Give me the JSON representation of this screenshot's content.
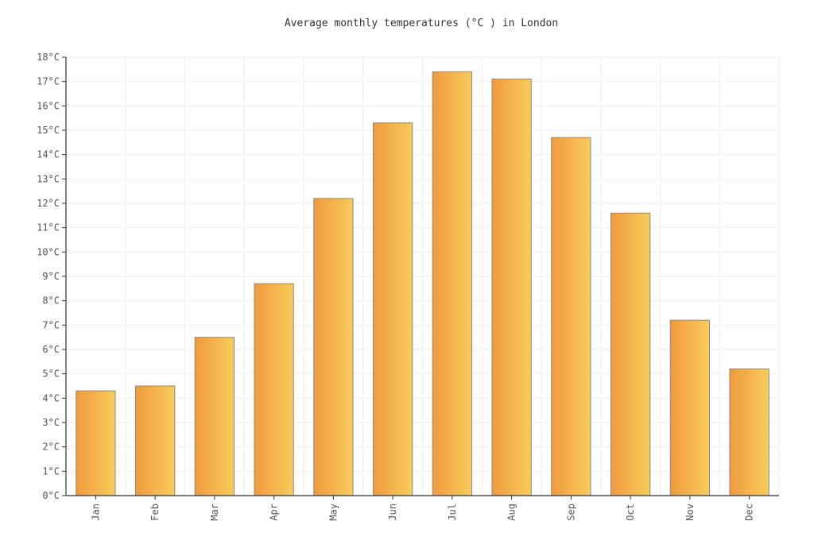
{
  "chart_data": {
    "type": "bar",
    "title": "Average monthly temperatures (°C ) in London",
    "categories": [
      "Jan",
      "Feb",
      "Mar",
      "Apr",
      "May",
      "Jun",
      "Jul",
      "Aug",
      "Sep",
      "Oct",
      "Nov",
      "Dec"
    ],
    "values": [
      4.3,
      4.5,
      6.5,
      8.7,
      12.2,
      15.3,
      17.4,
      17.1,
      14.7,
      11.6,
      7.2,
      5.2
    ],
    "ylim": [
      0,
      18
    ],
    "y_ticks": [
      "0°C",
      "1°C",
      "2°C",
      "3°C",
      "4°C",
      "5°C",
      "6°C",
      "7°C",
      "8°C",
      "9°C",
      "10°C",
      "11°C",
      "12°C",
      "13°C",
      "14°C",
      "15°C",
      "16°C",
      "17°C",
      "18°C"
    ],
    "grid": true,
    "colors": {
      "bar_start": "#f09a3e",
      "bar_end": "#f8cc5a",
      "bar_stroke": "#8a8a8a",
      "grid": "#eeeeee",
      "axis": "#333333"
    }
  }
}
